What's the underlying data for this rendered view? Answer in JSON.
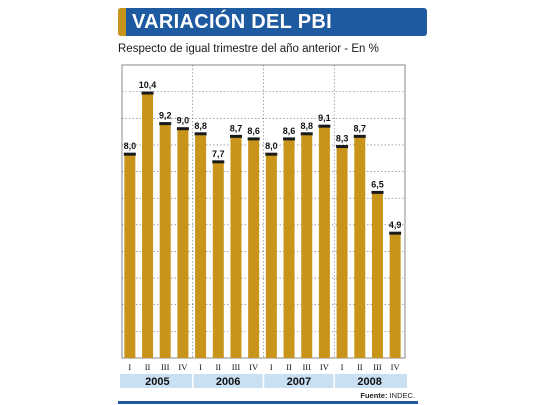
{
  "header": {
    "title": "VARIACIÓN DEL PBI",
    "subtitle": "Respecto de igual trimestre del año anterior - En %"
  },
  "source": {
    "label": "Fuente:",
    "value": "INDEC."
  },
  "colors": {
    "bar": "#c8951a",
    "banner": "#1d5a9f",
    "year_band": "#c9dff2",
    "gridline": "#6e6e6e"
  },
  "chart_data": {
    "type": "bar",
    "title": "VARIACIÓN DEL PBI",
    "subtitle": "Respecto de igual trimestre del año anterior - En %",
    "xlabel": "",
    "ylabel": "",
    "ylim": [
      0,
      11.5
    ],
    "grid": true,
    "legend": "none",
    "years": [
      "2005",
      "2006",
      "2007",
      "2008"
    ],
    "quarters": [
      "I",
      "II",
      "III",
      "IV"
    ],
    "values": [
      8.0,
      10.4,
      9.2,
      9.0,
      8.8,
      7.7,
      8.7,
      8.6,
      8.0,
      8.6,
      8.8,
      9.1,
      8.3,
      8.7,
      6.5,
      4.9
    ],
    "value_labels": [
      "8,0",
      "10,4",
      "9,2",
      "9,0",
      "8,8",
      "7,7",
      "8,7",
      "8,6",
      "8,0",
      "8,6",
      "8,8",
      "9,1",
      "8,3",
      "8,7",
      "6,5",
      "4,9"
    ]
  }
}
